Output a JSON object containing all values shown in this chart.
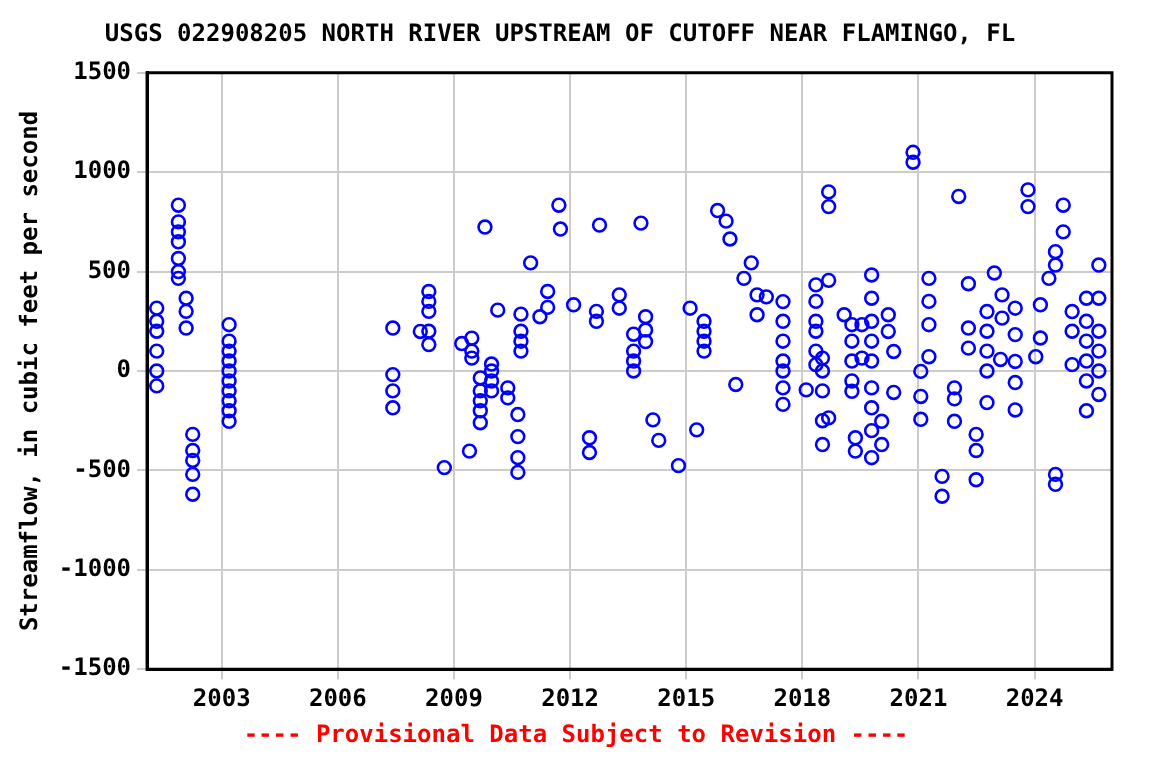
{
  "chart_data": {
    "type": "scatter",
    "title": "USGS 022908205 NORTH RIVER UPSTREAM OF CUTOFF NEAR FLAMINGO, FL",
    "ylabel": "Streamflow, in cubic feet per second",
    "annotations": [
      "---- Provisional Data Subject to Revision ----"
    ],
    "marker": "circle",
    "grid": true,
    "xlim": [
      2001.07,
      2026.0
    ],
    "xticks": [
      2003,
      2006,
      2009,
      2012,
      2015,
      2018,
      2021,
      2024
    ],
    "ylim": [
      -1500,
      1500
    ],
    "yticks": [
      -1500,
      -1000,
      -500,
      0,
      500,
      1000,
      1500
    ],
    "series": [
      {
        "color": "#0000ff",
        "x": [
          2001.32,
          2001.32,
          2001.32,
          2001.32,
          2001.32,
          2001.32,
          2001.88,
          2001.88,
          2001.88,
          2001.88,
          2001.88,
          2001.88,
          2001.88,
          2002.08,
          2002.08,
          2002.08,
          2002.25,
          2002.25,
          2002.25,
          2002.25,
          2002.25,
          2003.19,
          2003.19,
          2003.19,
          2003.19,
          2003.19,
          2003.19,
          2003.19,
          2003.19,
          2003.19,
          2003.19,
          2007.42,
          2007.42,
          2007.42,
          2007.42,
          2008.13,
          2008.35,
          2008.35,
          2008.35,
          2008.35,
          2008.35,
          2008.75,
          2009.2,
          2009.4,
          2009.46,
          2009.46,
          2009.46,
          2009.68,
          2009.68,
          2009.68,
          2009.68,
          2009.68,
          2009.8,
          2009.97,
          2009.97,
          2009.97,
          2009.97,
          2010.13,
          2010.39,
          2010.39,
          2010.65,
          2010.65,
          2010.65,
          2010.65,
          2010.73,
          2010.73,
          2010.73,
          2010.73,
          2010.98,
          2011.22,
          2011.42,
          2011.42,
          2011.71,
          2011.75,
          2012.09,
          2012.5,
          2012.5,
          2012.68,
          2012.68,
          2012.76,
          2013.27,
          2013.27,
          2013.64,
          2013.64,
          2013.64,
          2013.64,
          2013.83,
          2013.95,
          2013.95,
          2013.95,
          2014.14,
          2014.29,
          2014.8,
          2015.1,
          2015.27,
          2015.46,
          2015.46,
          2015.46,
          2015.46,
          2015.81,
          2016.03,
          2016.13,
          2016.28,
          2016.49,
          2016.68,
          2016.83,
          2016.83,
          2017.07,
          2017.5,
          2017.5,
          2017.5,
          2017.5,
          2017.5,
          2017.5,
          2017.5,
          2018.1,
          2018.35,
          2018.35,
          2018.35,
          2018.35,
          2018.35,
          2018.35,
          2018.52,
          2018.52,
          2018.52,
          2018.52,
          2018.52,
          2018.68,
          2018.68,
          2018.68,
          2018.68,
          2019.08,
          2019.28,
          2019.28,
          2019.28,
          2019.28,
          2019.28,
          2019.37,
          2019.37,
          2019.54,
          2019.54,
          2019.79,
          2019.79,
          2019.79,
          2019.79,
          2019.79,
          2019.79,
          2019.79,
          2019.79,
          2019.79,
          2020.05,
          2020.05,
          2020.22,
          2020.22,
          2020.36,
          2020.36,
          2020.86,
          2020.86,
          2021.06,
          2021.06,
          2021.06,
          2021.27,
          2021.27,
          2021.27,
          2021.27,
          2021.61,
          2021.61,
          2021.93,
          2021.93,
          2021.93,
          2022.04,
          2022.29,
          2022.29,
          2022.29,
          2022.49,
          2022.49,
          2022.49,
          2022.77,
          2022.77,
          2022.77,
          2022.77,
          2022.77,
          2022.96,
          2023.12,
          2023.16,
          2023.16,
          2023.5,
          2023.5,
          2023.5,
          2023.5,
          2023.5,
          2023.83,
          2023.83,
          2024.03,
          2024.15,
          2024.15,
          2024.37,
          2024.54,
          2024.54,
          2024.54,
          2024.54,
          2024.74,
          2024.74,
          2024.97,
          2024.97,
          2024.97,
          2025.34,
          2025.34,
          2025.34,
          2025.34,
          2025.34,
          2025.34,
          2025.66,
          2025.66,
          2025.66,
          2025.66,
          2025.66,
          2025.66
        ],
        "values": [
          316,
          250,
          200,
          100,
          0,
          -75,
          834,
          750,
          700,
          650,
          566,
          500,
          466,
          366,
          300,
          216,
          -319,
          -400,
          -450,
          -520,
          -620,
          233,
          150,
          100,
          50,
          0,
          -50,
          -100,
          -150,
          -200,
          -253,
          216,
          -18,
          -100,
          -185,
          199,
          400,
          350,
          300,
          200,
          133,
          -486,
          138,
          -403,
          165,
          100,
          65,
          -35,
          -100,
          -150,
          -200,
          -260,
          724,
          35,
          0,
          -50,
          -100,
          306,
          -85,
          -135,
          -219,
          -330,
          -436,
          -510,
          286,
          200,
          150,
          100,
          544,
          273,
          400,
          320,
          834,
          714,
          333,
          -336,
          -410,
          300,
          250,
          734,
          383,
          316,
          185,
          100,
          50,
          0,
          744,
          273,
          206,
          148,
          -246,
          -349,
          -476,
          316,
          -296,
          250,
          200,
          150,
          100,
          807,
          754,
          664,
          -68,
          466,
          544,
          383,
          283,
          373,
          349,
          250,
          150,
          50,
          0,
          -85,
          -168,
          -95,
          433,
          350,
          250,
          200,
          100,
          32,
          65,
          0,
          -100,
          -250,
          -370,
          901,
          827,
          456,
          -236,
          283,
          233,
          150,
          50,
          -50,
          -102,
          -336,
          -403,
          233,
          65,
          483,
          366,
          250,
          150,
          50,
          -85,
          -185,
          -300,
          -436,
          -253,
          -370,
          283,
          199,
          98,
          -108,
          1100,
          1050,
          -2,
          -128,
          -243,
          466,
          350,
          233,
          72,
          -530,
          -630,
          -85,
          -140,
          -253,
          878,
          439,
          216,
          115,
          -319,
          -400,
          -547,
          299,
          200,
          100,
          0,
          -159,
          493,
          58,
          383,
          266,
          316,
          183,
          48,
          -58,
          -196,
          911,
          827,
          72,
          333,
          166,
          466,
          600,
          533,
          -520,
          -570,
          834,
          700,
          299,
          200,
          32,
          366,
          250,
          150,
          50,
          -50,
          -200,
          533,
          366,
          200,
          100,
          0,
          -118
        ]
      }
    ]
  }
}
